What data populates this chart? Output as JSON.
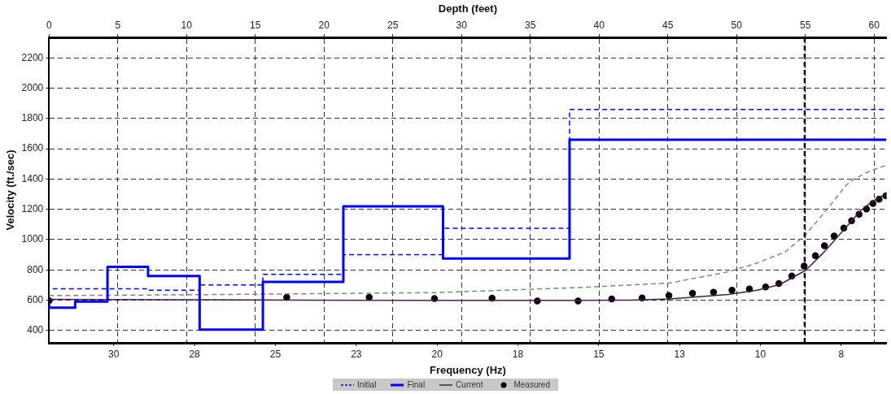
{
  "chart_data": {
    "type": "line",
    "xlabel": "Frequency (Hz)",
    "x2label": "Depth (feet)",
    "ylabel": "Velocity (ft./sec)",
    "xlim": [
      32,
      6.1
    ],
    "xticks": [
      30,
      {
        "value": 27.5,
        "label": "28"
      },
      25,
      {
        "value": 22.5,
        "label": "23"
      },
      20,
      {
        "value": 17.5,
        "label": "18"
      },
      15,
      {
        "value": 12.5,
        "label": "13"
      },
      10,
      {
        "value": 7.5,
        "label": "8"
      }
    ],
    "x2lim": [
      0,
      60.9
    ],
    "x2ticks": [
      0,
      5,
      10,
      15,
      20,
      25,
      30,
      35,
      40,
      45,
      50,
      55,
      60
    ],
    "ylim": [
      318,
      2336
    ],
    "yticks": [
      400,
      600,
      800,
      1000,
      1200,
      1400,
      1600,
      1800,
      2000,
      2200
    ],
    "grid": true,
    "legend": "bottom",
    "series": [
      {
        "name": "Initial",
        "type": "step",
        "axis": "x2",
        "color": "#0000ff",
        "line_style": "dashed",
        "x": [
          0,
          7.2,
          10.95,
          15.55,
          21.4,
          28.65,
          37.85,
          49.3,
          60.9
        ],
        "values": [
          645,
          675,
          665,
          700,
          770,
          900,
          1075,
          1860,
          1860
        ]
      },
      {
        "name": "Final",
        "type": "step",
        "axis": "x2",
        "color": "#0000ff",
        "line_style": "solid",
        "x": [
          0,
          1.9,
          4.25,
          7.2,
          10.95,
          15.55,
          21.4,
          28.65,
          37.85,
          49.3,
          60.9
        ],
        "values": [
          590,
          550,
          590,
          820,
          760,
          405,
          720,
          1220,
          875,
          1660,
          1660
        ]
      },
      {
        "color": "#8c7f8c",
        "line_style": "dashed",
        "x": [
          32,
          28,
          24,
          20,
          15.5,
          12.8,
          11.0,
          10.1,
          9.24,
          8.6,
          7.9,
          7.35,
          7.1,
          6.6,
          6.12
        ],
        "values": [
          630,
          635,
          642,
          650,
          684,
          713,
          787,
          845,
          918,
          1032,
          1210,
          1360,
          1400,
          1455,
          1490
        ]
      },
      {
        "name": "Current",
        "color": "#4b1a4f",
        "line_style": "solid",
        "x": [
          32,
          28,
          24,
          20,
          16,
          14,
          12.8,
          11.0,
          10.1,
          9.4,
          9.0,
          8.6,
          8.07,
          7.44,
          6.9,
          6.55,
          6.15
        ],
        "values": [
          605,
          603,
          600,
          598,
          598,
          600,
          608,
          637,
          666,
          703,
          750,
          797,
          909,
          1060,
          1192,
          1250,
          1300
        ]
      },
      {
        "name": "Measured",
        "type": "scatter",
        "color": "#000000",
        "marker": "circle",
        "x": [
          32.0,
          24.65,
          22.1,
          20.08,
          18.3,
          16.9,
          15.64,
          14.6,
          13.66,
          12.83,
          12.1,
          11.45,
          10.88,
          10.34,
          9.84,
          9.43,
          9.03,
          8.65,
          8.3,
          8.02,
          7.72,
          7.42,
          7.18,
          6.95,
          6.72,
          6.52,
          6.33,
          6.12
        ],
        "values": [
          597,
          618,
          618,
          610,
          613,
          595,
          595,
          608,
          614,
          631,
          645,
          652,
          666,
          673,
          687,
          710,
          759,
          825,
          894,
          960,
          1024,
          1076,
          1124,
          1167,
          1202,
          1239,
          1266,
          1289
        ]
      }
    ],
    "ref_lines": [
      {
        "axis": "x",
        "value": 8.63,
        "color": "#000000",
        "line_style": "dashed"
      }
    ]
  }
}
